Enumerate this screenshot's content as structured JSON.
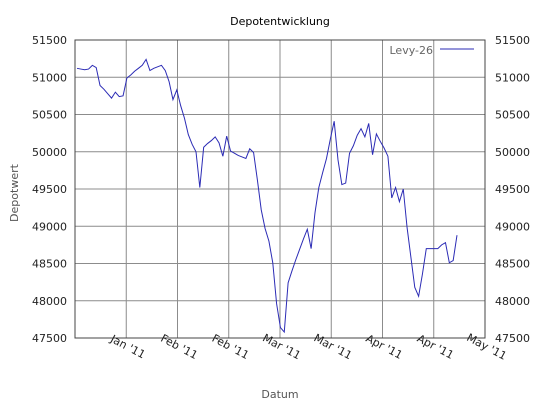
{
  "chart_data": {
    "type": "line",
    "title": "Depotentwicklung",
    "xlabel": "Datum",
    "ylabel": "Depotwert",
    "ylim": [
      47500,
      51500
    ],
    "yticks": [
      47500,
      48000,
      48500,
      49000,
      49500,
      50000,
      50500,
      51000,
      51500
    ],
    "xticks": [
      "Jan '11",
      "Feb '11",
      "Feb '11",
      "Mar '11",
      "Mar '11",
      "Apr '11",
      "Apr '11",
      "May '11"
    ],
    "grid": true,
    "legend_position": "top-right",
    "line_color": "#2b2bb5",
    "series": [
      {
        "name": "Levy-26",
        "values": [
          51120,
          51110,
          51100,
          51110,
          51160,
          51130,
          50890,
          50840,
          50780,
          50720,
          50800,
          50740,
          50750,
          50990,
          51030,
          51080,
          51120,
          51160,
          51240,
          51090,
          51120,
          51140,
          51160,
          51090,
          50940,
          50700,
          50830,
          50620,
          50450,
          50230,
          50100,
          50000,
          49520,
          50060,
          50110,
          50150,
          50200,
          50120,
          49940,
          50210,
          50010,
          49980,
          49950,
          49930,
          49910,
          50040,
          49990,
          49620,
          49220,
          48970,
          48800,
          48510,
          47960,
          47640,
          47580,
          48240,
          48400,
          48550,
          48690,
          48830,
          48960,
          48700,
          49180,
          49520,
          49720,
          49910,
          50170,
          50410,
          49890,
          49560,
          49580,
          49980,
          50080,
          50220,
          50310,
          50200,
          50380,
          49960,
          50240,
          50140,
          50050,
          49940,
          49380,
          49520,
          49330,
          49500,
          48980,
          48580,
          48180,
          48060,
          48360,
          48700,
          48700,
          48700,
          48700,
          48750,
          48780,
          48510,
          48540,
          48880
        ]
      }
    ]
  }
}
